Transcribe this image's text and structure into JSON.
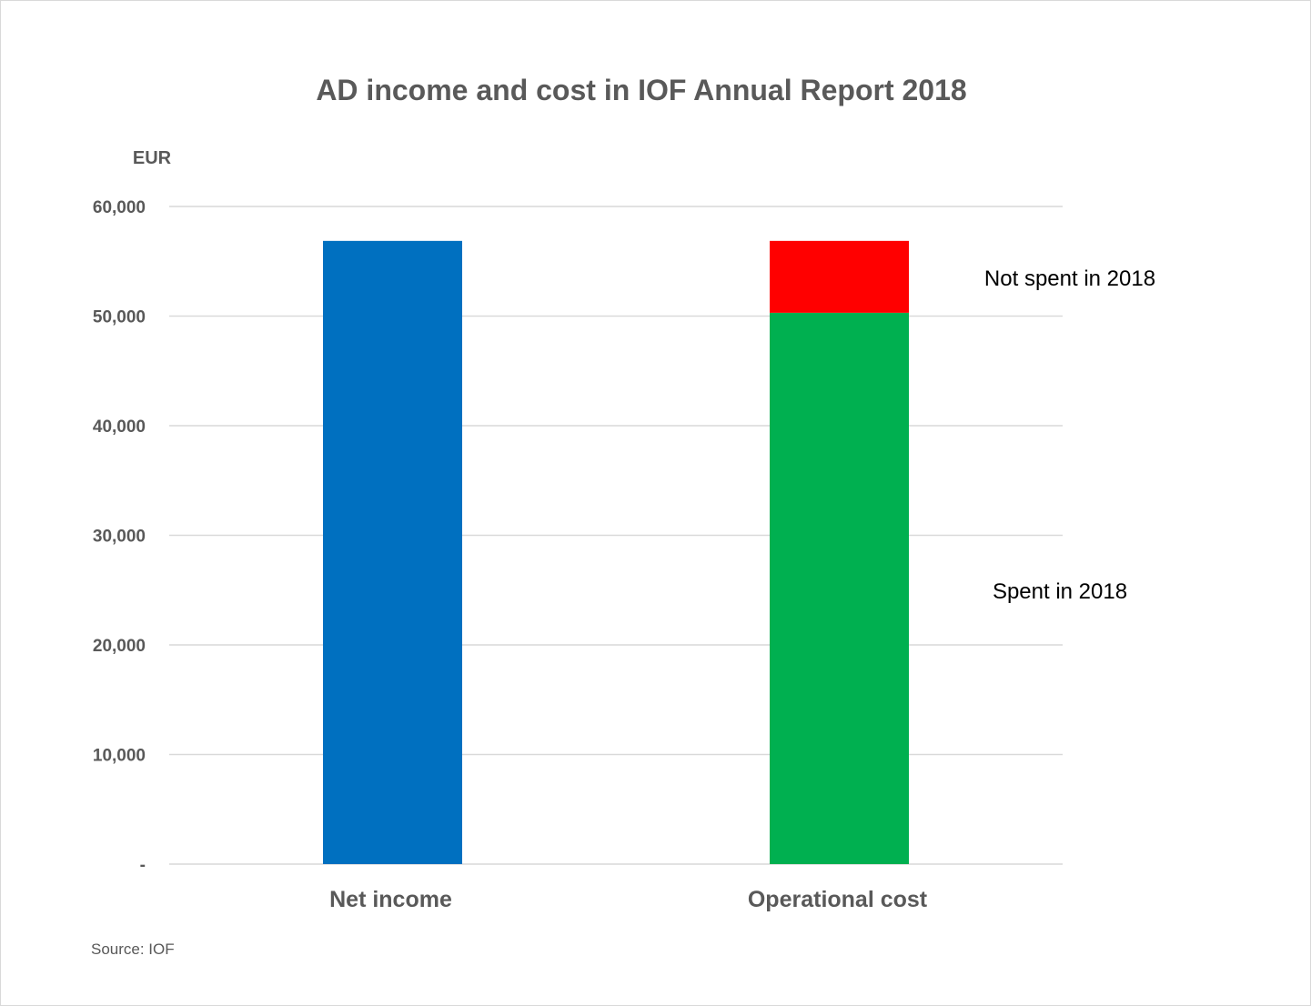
{
  "chart_data": {
    "type": "bar",
    "stacked": true,
    "title": "AD income and cost in IOF Annual Report 2018",
    "ylabel": "EUR",
    "xlabel": "",
    "ylim": [
      0,
      60000
    ],
    "yticks": [
      0,
      10000,
      20000,
      30000,
      40000,
      50000,
      60000
    ],
    "ytick_labels": [
      "-",
      "10,000",
      "20,000",
      "30,000",
      "40,000",
      "50,000",
      "60,000"
    ],
    "grid": true,
    "categories": [
      "Net income",
      "Operational cost"
    ],
    "series": [
      {
        "key": "net",
        "values": [
          56860,
          0
        ],
        "color": "#0070C0"
      },
      {
        "key": "spent",
        "name": "Spent in 2018",
        "values": [
          0,
          50300
        ],
        "color": "#00B050"
      },
      {
        "key": "notspent",
        "name": "Not spent in 2018",
        "values": [
          0,
          6560
        ],
        "color": "#FF0000"
      }
    ],
    "annotations": [
      "Not spent in 2018",
      "Spent in 2018"
    ],
    "source": "Source: IOF"
  }
}
